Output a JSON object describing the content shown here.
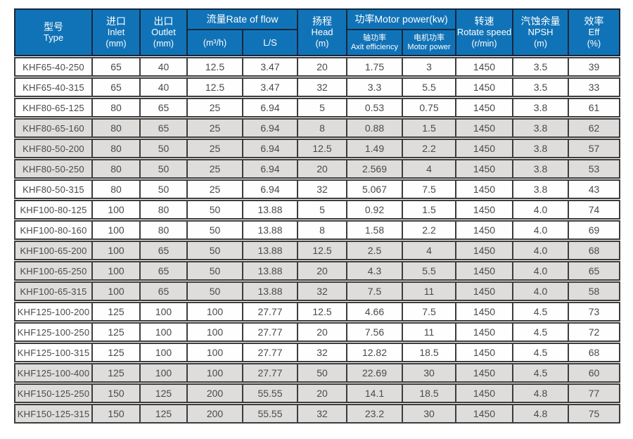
{
  "table": {
    "header": {
      "type": {
        "zh": "型号",
        "en": "Type"
      },
      "inlet": {
        "zh": "进口",
        "en": "Inlet",
        "unit": "(mm)"
      },
      "outlet": {
        "zh": "出口",
        "en": "Outlet",
        "unit": "(mm)"
      },
      "flow": {
        "title": "流量Rate of flow",
        "m3h": "(m³/h)",
        "ls": "L/S"
      },
      "head": {
        "zh": "扬程",
        "en": "Head",
        "unit": "(m)"
      },
      "power": {
        "title": "功率Motor power(kw)",
        "shaft": {
          "zh": "轴功率",
          "en": "Axit efficiency"
        },
        "motor": {
          "zh": "电机功率",
          "en": "Motor power"
        }
      },
      "rotate": {
        "zh": "转速",
        "en": "Rotate speed",
        "unit": "(r/min)"
      },
      "npsh": {
        "zh": "汽蚀余量",
        "en": "NPSH",
        "unit": "(m)"
      },
      "eff": {
        "zh": "效率",
        "en": "Eff",
        "unit": "(%)"
      }
    },
    "rows": [
      [
        "KHF65-40-250",
        "65",
        "40",
        "12.5",
        "3.47",
        "20",
        "1.75",
        "3",
        "1450",
        "3.5",
        "39"
      ],
      [
        "KHF65-40-315",
        "65",
        "40",
        "12.5",
        "3.47",
        "32",
        "3.3",
        "5.5",
        "1450",
        "3.5",
        "33"
      ],
      [
        "KHF80-65-125",
        "80",
        "65",
        "25",
        "6.94",
        "5",
        "0.53",
        "0.75",
        "1450",
        "3.8",
        "61"
      ],
      [
        "KHF80-65-160",
        "80",
        "65",
        "25",
        "6.94",
        "8",
        "0.88",
        "1.5",
        "1450",
        "3.8",
        "62"
      ],
      [
        "KHF80-50-200",
        "80",
        "50",
        "25",
        "6.94",
        "12.5",
        "1.49",
        "2.2",
        "1450",
        "3.8",
        "57"
      ],
      [
        "KHF80-50-250",
        "80",
        "50",
        "25",
        "6.94",
        "20",
        "2.569",
        "4",
        "1450",
        "3.8",
        "53"
      ],
      [
        "KHF80-50-315",
        "80",
        "50",
        "25",
        "6.94",
        "32",
        "5.067",
        "7.5",
        "1450",
        "3.8",
        "43"
      ],
      [
        "KHF100-80-125",
        "100",
        "80",
        "50",
        "13.88",
        "5",
        "0.92",
        "1.5",
        "1450",
        "4.0",
        "74"
      ],
      [
        "KHF100-80-160",
        "100",
        "80",
        "50",
        "13.88",
        "8",
        "1.58",
        "2.2",
        "1450",
        "4.0",
        "69"
      ],
      [
        "KHF100-65-200",
        "100",
        "65",
        "50",
        "13.88",
        "12.5",
        "2.5",
        "4",
        "1450",
        "4.0",
        "68"
      ],
      [
        "KHF100-65-250",
        "100",
        "65",
        "50",
        "13.88",
        "20",
        "4.3",
        "5.5",
        "1450",
        "4.0",
        "65"
      ],
      [
        "KHF100-65-315",
        "100",
        "65",
        "50",
        "13.88",
        "32",
        "7.5",
        "11",
        "1450",
        "4.0",
        "58"
      ],
      [
        "KHF125-100-200",
        "125",
        "100",
        "100",
        "27.77",
        "12.5",
        "4.66",
        "7.5",
        "1450",
        "4.5",
        "73"
      ],
      [
        "KHF125-100-250",
        "125",
        "100",
        "100",
        "27.77",
        "20",
        "7.56",
        "11",
        "1450",
        "4.5",
        "72"
      ],
      [
        "KHF125-100-315",
        "125",
        "100",
        "100",
        "27.77",
        "32",
        "12.82",
        "18.5",
        "1450",
        "4.5",
        "68"
      ],
      [
        "KHF125-100-400",
        "125",
        "100",
        "100",
        "27.77",
        "50",
        "22.69",
        "30",
        "1450",
        "4.5",
        "60"
      ],
      [
        "KHF150-125-250",
        "150",
        "125",
        "200",
        "55.55",
        "20",
        "14.1",
        "18.5",
        "1450",
        "4.8",
        "77"
      ],
      [
        "KHF150-125-315",
        "150",
        "125",
        "200",
        "55.55",
        "32",
        "23.2",
        "30",
        "1450",
        "4.8",
        "75"
      ]
    ],
    "colors": {
      "header_bg": "#1173b7",
      "header_line": "#14283d",
      "body_border": "#3d3d3d",
      "body_text": "#4a4a4a",
      "row_shaded_bg": "#dedddb",
      "row_plain_bg": "#fefefe"
    }
  }
}
